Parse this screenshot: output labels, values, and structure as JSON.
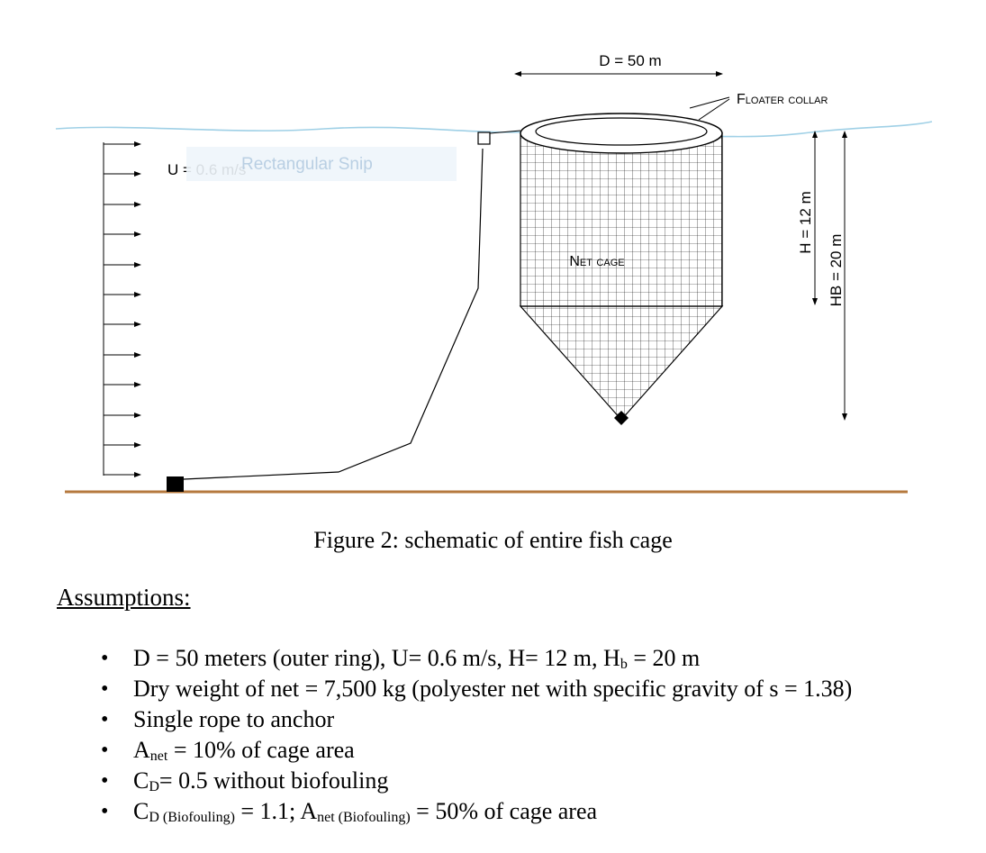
{
  "figure": {
    "labels": {
      "diameter": "D = 50 m",
      "collar": "Floater collar",
      "current": "U = 0.6 m/s",
      "net_cage": "Net cage",
      "net_height": "H = 12 m",
      "bottom_height": "HB = 20 m"
    },
    "snip_overlay": "Rectangular Snip",
    "caption": "Figure 2: schematic of entire fish cage"
  },
  "assumptions": {
    "heading": "Assumptions:",
    "items": [
      {
        "pre": "D = 50 meters (outer ring), U= 0.6 m/s, H= 12 m, H",
        "sub": "b",
        "post": " = 20 m"
      },
      {
        "pre": "Dry weight of net = 7,500 kg (polyester net with specific gravity of s = 1.38)"
      },
      {
        "pre": "Single rope to anchor"
      },
      {
        "pre": "A",
        "sub": "net",
        "post": " = 10% of cage area"
      },
      {
        "pre": "C",
        "sub": "D",
        "post": "= 0.5 without biofouling"
      },
      {
        "pre": "C",
        "sub": "D (Biofouling)",
        "post": " = 1.1; A",
        "sub2": "net (Biofouling)",
        "post2": "  = 50% of cage area"
      }
    ]
  },
  "colors": {
    "water": "#9fd0e6",
    "seabed": "#b5793e",
    "line": "#000000"
  }
}
